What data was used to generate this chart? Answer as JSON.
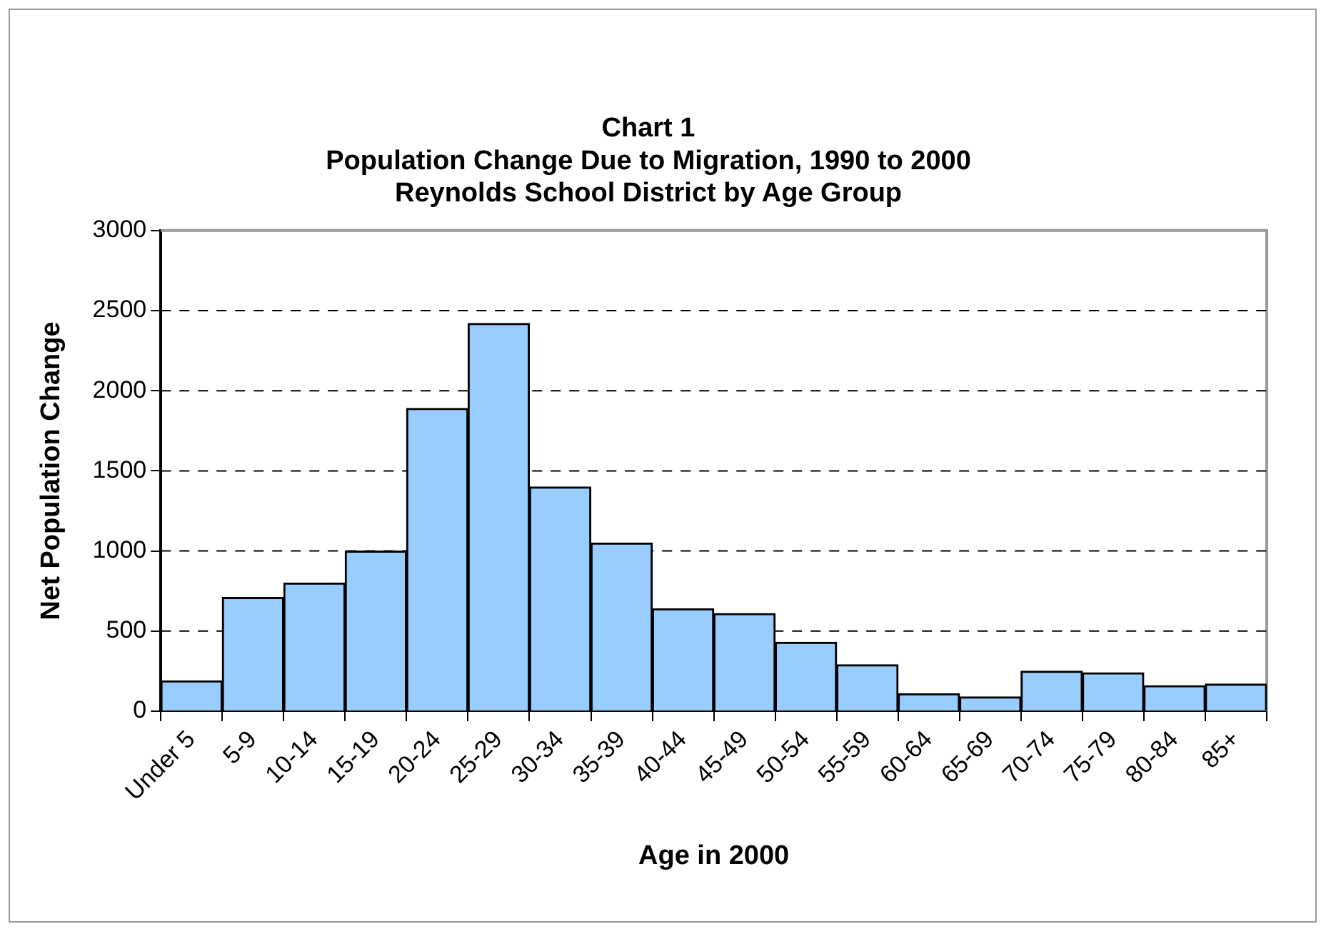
{
  "chart_data": {
    "type": "bar",
    "title": "Chart 1\nPopulation Change Due to Migration, 1990 to 2000\nReynolds School District by Age Group",
    "xlabel": "Age in 2000",
    "ylabel": "Net Population Change",
    "categories": [
      "Under 5",
      "5-9",
      "10-14",
      "15-19",
      "20-24",
      "25-29",
      "30-34",
      "35-39",
      "40-44",
      "45-49",
      "50-54",
      "55-59",
      "60-64",
      "65-69",
      "70-74",
      "75-79",
      "80-84",
      "85+"
    ],
    "values": [
      190,
      710,
      800,
      1000,
      1890,
      2420,
      1400,
      1050,
      640,
      610,
      430,
      290,
      110,
      90,
      250,
      240,
      160,
      170
    ],
    "color": "#99ccff",
    "ylim": [
      0,
      3000
    ],
    "yticks": [
      0,
      500,
      1000,
      1500,
      2000,
      2500,
      3000
    ],
    "grid": "y",
    "legend": false
  }
}
